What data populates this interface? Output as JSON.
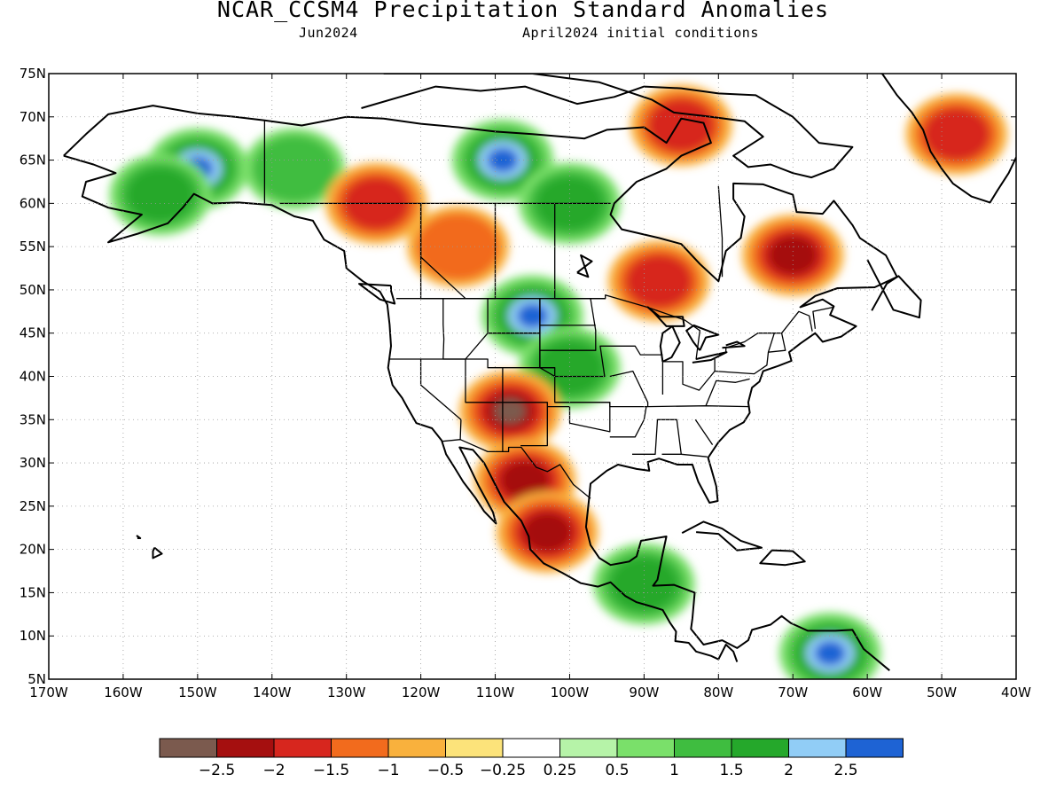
{
  "title": "NCAR_CCSM4 Precipitation Standard Anomalies",
  "subtitle_left": "Jun2024",
  "subtitle_right": "April2024 initial conditions",
  "map": {
    "lon_range": [
      -170,
      -40
    ],
    "lat_range": [
      5,
      75
    ],
    "lat_ticks": [
      "75N",
      "70N",
      "65N",
      "60N",
      "55N",
      "50N",
      "45N",
      "40N",
      "35N",
      "30N",
      "25N",
      "20N",
      "15N",
      "10N",
      "5N"
    ],
    "lon_ticks": [
      "170W",
      "160W",
      "150W",
      "140W",
      "130W",
      "120W",
      "110W",
      "100W",
      "90W",
      "80W",
      "70W",
      "60W",
      "50W",
      "40W"
    ],
    "grid": true
  },
  "anomaly_regions": [
    {
      "name": "alaska-interior",
      "lon": -150,
      "lat": 64,
      "value": 2.5
    },
    {
      "name": "alaska-south",
      "lon": -155,
      "lat": 61,
      "value": 1.5
    },
    {
      "name": "yukon",
      "lon": -137,
      "lat": 64,
      "value": 1.0
    },
    {
      "name": "bc-north",
      "lon": -126,
      "lat": 60,
      "value": -1.5
    },
    {
      "name": "nunavut-central",
      "lon": -109,
      "lat": 65,
      "value": 2.5
    },
    {
      "name": "hudson-west",
      "lon": -100,
      "lat": 60,
      "value": 1.5
    },
    {
      "name": "alberta",
      "lon": -115,
      "lat": 55,
      "value": -1.0
    },
    {
      "name": "northern-plains",
      "lon": -105,
      "lat": 47,
      "value": 2.5
    },
    {
      "name": "great-plains",
      "lon": -100,
      "lat": 41,
      "value": 1.5
    },
    {
      "name": "four-corners",
      "lon": -108,
      "lat": 36,
      "value": -2.5
    },
    {
      "name": "northwest-mexico",
      "lon": -106,
      "lat": 28,
      "value": -2.0
    },
    {
      "name": "central-mexico",
      "lon": -103,
      "lat": 22,
      "value": -2.0
    },
    {
      "name": "ontario",
      "lon": -88,
      "lat": 51,
      "value": -1.5
    },
    {
      "name": "quebec-labrador",
      "lon": -70,
      "lat": 54,
      "value": -2.0
    },
    {
      "name": "baffin",
      "lon": -85,
      "lat": 69,
      "value": -1.5
    },
    {
      "name": "greenland",
      "lon": -48,
      "lat": 68,
      "value": -1.5
    },
    {
      "name": "central-america",
      "lon": -90,
      "lat": 16,
      "value": 1.5
    },
    {
      "name": "venezuela",
      "lon": -65,
      "lat": 8,
      "value": 2.5
    }
  ],
  "colorbar": {
    "colors": [
      "#7b5a4e",
      "#a50f0f",
      "#d7261e",
      "#f26b1d",
      "#f9b13d",
      "#fce37a",
      "#ffffff",
      "#b6f3a8",
      "#7ae06a",
      "#3fbd40",
      "#25a82b",
      "#91cdf6",
      "#1e63d4"
    ],
    "labels": [
      "-2.5",
      "-2",
      "-1.5",
      "-1",
      "-0.5",
      "-0.25",
      "0.25",
      "0.5",
      "1",
      "1.5",
      "2",
      "2.5"
    ],
    "label_texts": [
      "−2.5",
      "−2",
      "−1.5",
      "−1",
      "−0.5",
      "−0.25",
      "0.25",
      "0.5",
      "1",
      "1.5",
      "2",
      "2.5"
    ]
  }
}
